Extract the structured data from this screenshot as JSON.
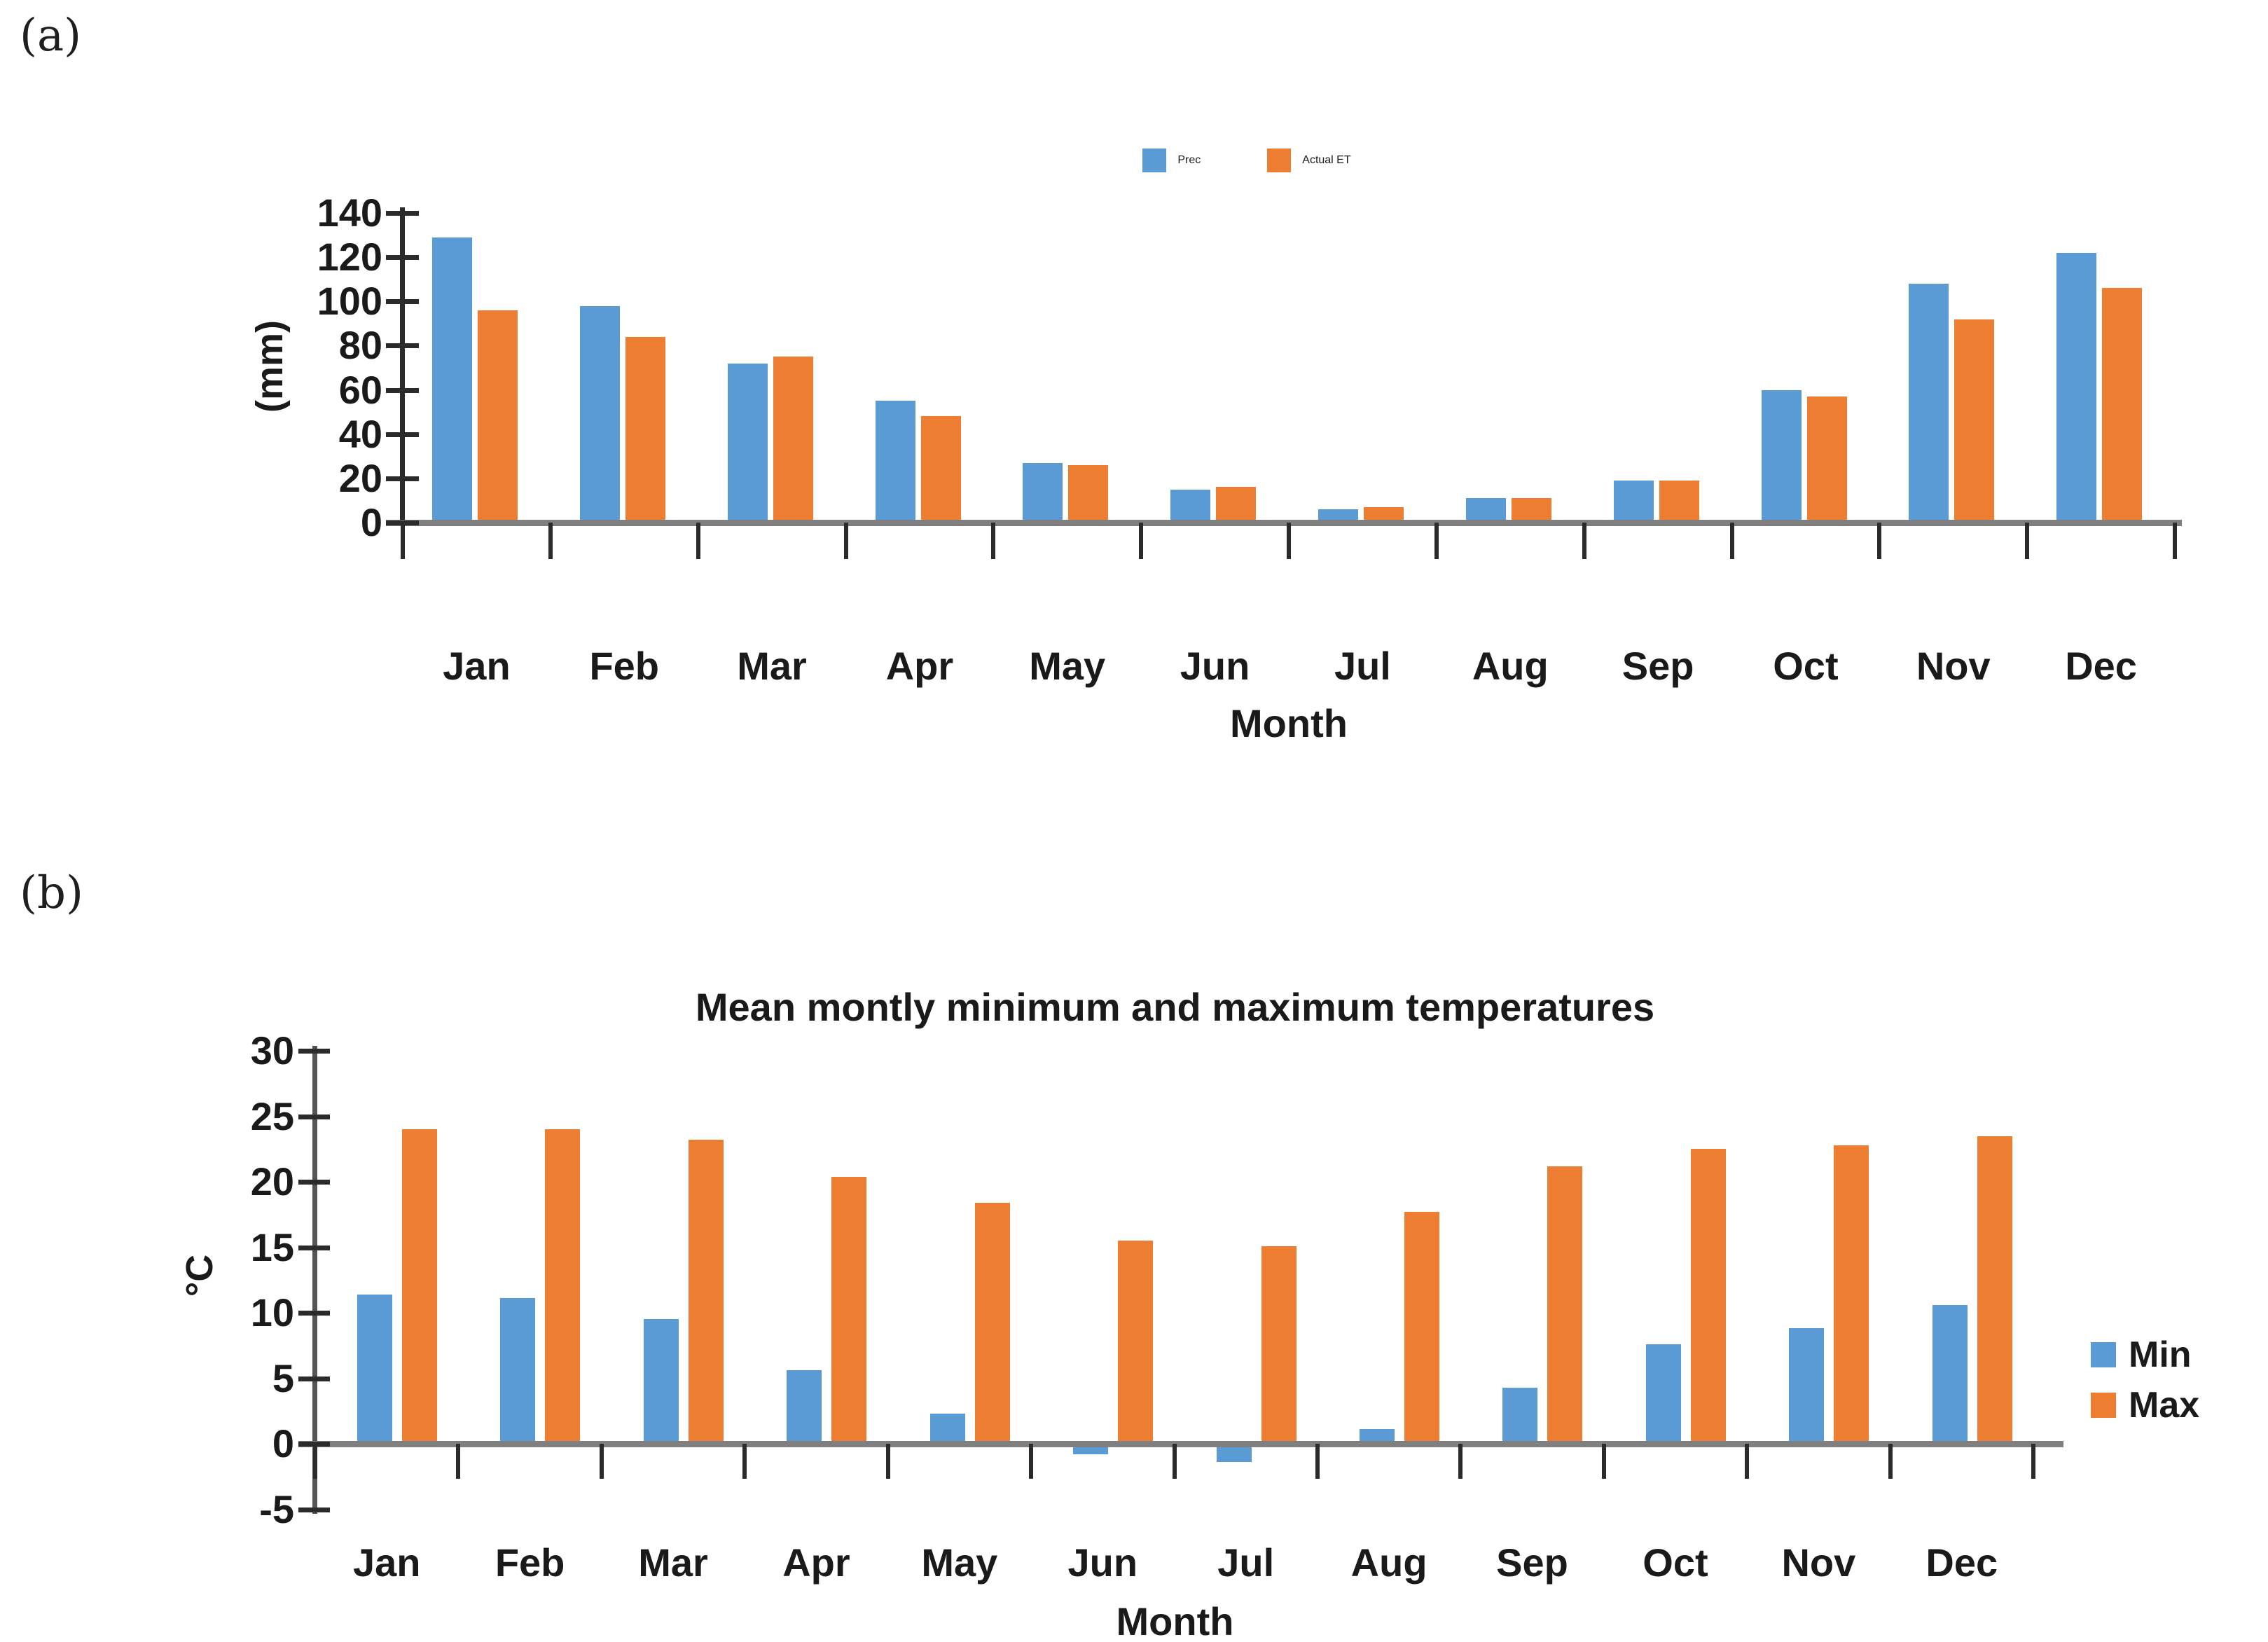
{
  "figure_labels": {
    "a": "(a)",
    "b": "(b)"
  },
  "chart_data": [
    {
      "id": "precipitation-vs-actual-et",
      "type": "bar",
      "title": "",
      "categories": [
        "Jan",
        "Feb",
        "Mar",
        "Apr",
        "May",
        "Jun",
        "Jul",
        "Aug",
        "Sep",
        "Oct",
        "Nov",
        "Dec"
      ],
      "series": [
        {
          "name": "Prec",
          "color": "#5B9BD5",
          "values": [
            129,
            98,
            72,
            55,
            27,
            15,
            6,
            11,
            19,
            60,
            108,
            122
          ]
        },
        {
          "name": "Actual ET",
          "color": "#ED7D31",
          "values": [
            96,
            84,
            75,
            48,
            26,
            16,
            7,
            11,
            19,
            57,
            92,
            106
          ]
        }
      ],
      "xlabel": "Month",
      "ylabel": "(mm)",
      "ylim": [
        0,
        140
      ],
      "yticks": [
        0,
        20,
        40,
        60,
        80,
        100,
        120,
        140
      ],
      "grid": false,
      "legend_position": "top-center"
    },
    {
      "id": "min-max-temperatures",
      "type": "bar",
      "title": "Mean montly minimum and maximum temperatures",
      "categories": [
        "Jan",
        "Feb",
        "Mar",
        "Apr",
        "May",
        "Jun",
        "Jul",
        "Aug",
        "Sep",
        "Oct",
        "Nov",
        "Dec"
      ],
      "series": [
        {
          "name": "Min",
          "color": "#5B9BD5",
          "values": [
            11.4,
            11.1,
            9.5,
            5.6,
            2.3,
            -0.6,
            -1.2,
            1.1,
            4.3,
            7.6,
            8.8,
            10.6
          ]
        },
        {
          "name": "Max",
          "color": "#ED7D31",
          "values": [
            24.0,
            24.0,
            23.2,
            20.4,
            18.4,
            15.5,
            15.1,
            17.7,
            21.2,
            22.5,
            22.8,
            23.5
          ]
        }
      ],
      "xlabel": "Month",
      "ylabel": "°C",
      "ylim": [
        -5,
        30
      ],
      "yticks": [
        -5,
        0,
        5,
        10,
        15,
        20,
        25,
        30
      ],
      "grid": false,
      "legend_position": "right"
    }
  ]
}
